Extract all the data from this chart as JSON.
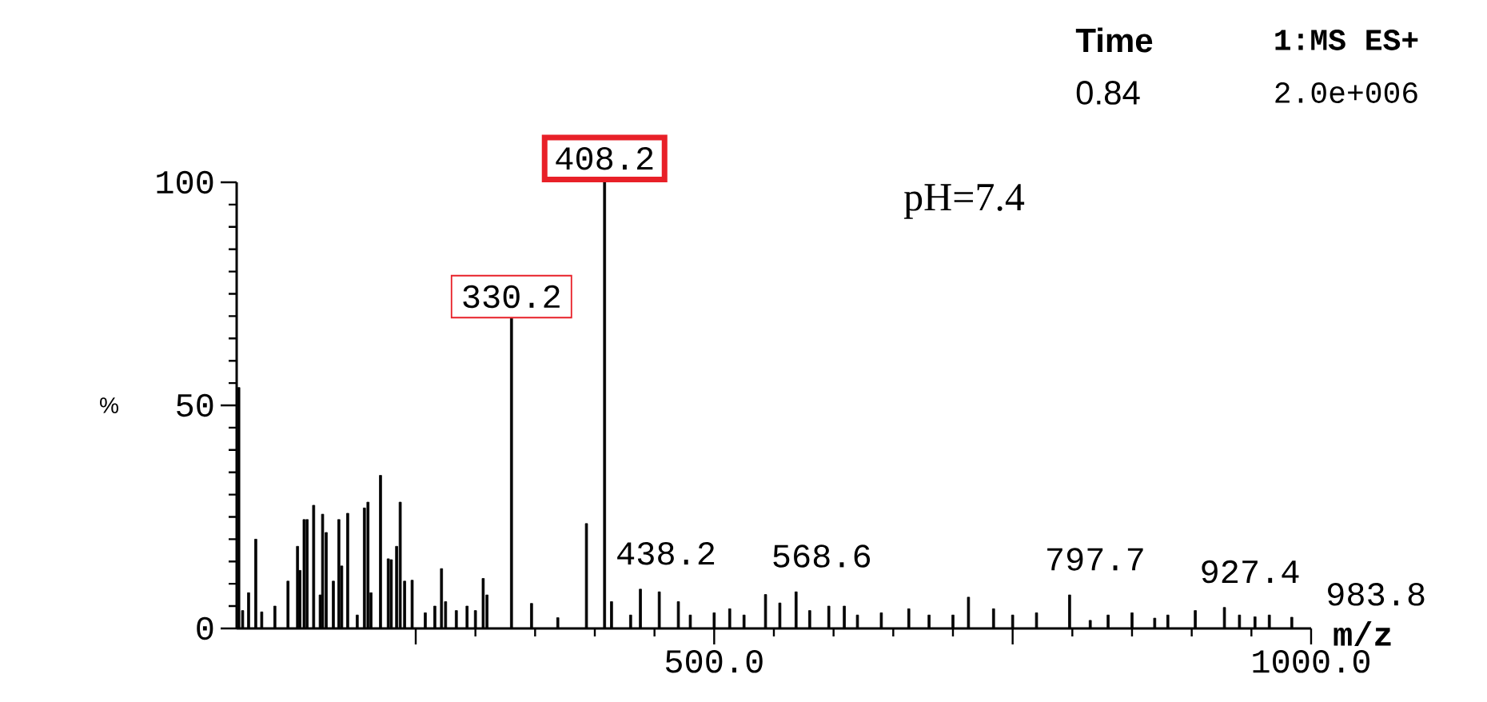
{
  "chart_data": {
    "type": "bar",
    "ylabel": "%",
    "xlabel": "m/z",
    "annotations": [
      "Time",
      "1:MS ES+",
      "0.84",
      "2.0e+006",
      "pH=7.4",
      {
        "text": "330.2",
        "x": 330.2,
        "y": 69.5
      },
      {
        "text": "408.2",
        "x": 408.2,
        "y": 100
      },
      {
        "text": "438.2",
        "x": 438.2,
        "y": 8.8
      },
      {
        "text": "568.6",
        "x": 568.6,
        "y": 8.2
      },
      {
        "text": "797.7",
        "x": 797.7,
        "y": 7.5
      },
      {
        "text": "927.4",
        "x": 927.4,
        "y": 4.7
      },
      {
        "text": "983.8",
        "x": 983.8,
        "y": 2.5
      }
    ],
    "xlim": [
      100,
      1000
    ],
    "ylim": [
      0,
      100
    ],
    "xticks": [
      {
        "value": 250,
        "label": null
      },
      {
        "value": 500,
        "label": "500.0"
      },
      {
        "value": 750,
        "label": null
      },
      {
        "value": 1000,
        "label": "1000.0"
      }
    ],
    "yticks": [
      0,
      50,
      100
    ],
    "x": [
      101.8,
      105,
      110,
      116,
      121,
      132,
      143,
      151,
      153,
      156.5,
      159,
      164.5,
      170,
      172,
      175,
      181,
      185.6,
      188,
      193,
      201,
      207,
      210,
      212.5,
      220.5,
      227,
      229.5,
      234,
      237,
      240.7,
      247,
      258,
      266,
      271.6,
      275,
      284,
      293,
      300,
      306.5,
      309.7,
      330.2,
      347,
      369,
      393,
      408.2,
      414,
      430,
      438.2,
      454,
      470,
      480,
      500,
      513,
      525,
      543,
      555,
      568.6,
      580,
      596,
      609,
      620,
      640,
      663,
      680,
      700,
      713,
      734,
      750,
      770,
      797.7,
      815,
      830,
      850,
      869,
      880,
      903,
      927.4,
      940,
      953,
      965,
      983.8
    ],
    "series": [
      {
        "color": "#000000",
        "values": [
          54,
          4,
          8,
          20,
          3.7,
          5,
          10.6,
          18.4,
          13,
          24.4,
          24.4,
          27.6,
          7.5,
          25.6,
          21.5,
          10.6,
          24.4,
          14,
          25.8,
          3,
          27,
          28.3,
          8,
          34.3,
          15.6,
          15.4,
          18.4,
          28.3,
          10.6,
          10.8,
          3.5,
          5,
          13.4,
          6,
          4,
          5,
          4,
          11.2,
          7.5,
          69.5,
          5.6,
          2.4,
          23.5,
          100,
          6,
          3,
          8.8,
          8.2,
          6,
          3,
          3.5,
          4.4,
          3,
          7.6,
          5.7,
          8.2,
          4,
          5,
          5,
          3,
          3.5,
          4.4,
          3,
          3,
          7,
          4.4,
          3,
          3.5,
          7.5,
          1.8,
          3,
          3.5,
          2.3,
          3,
          4,
          4.7,
          3,
          2.6,
          3,
          2.5
        ]
      }
    ]
  }
}
